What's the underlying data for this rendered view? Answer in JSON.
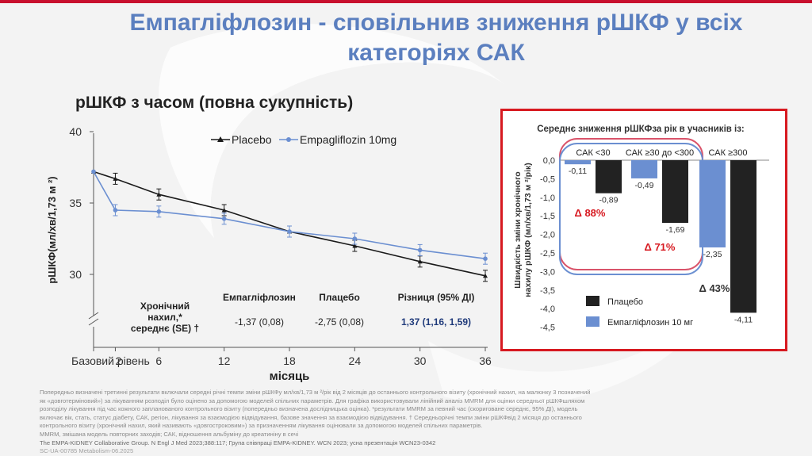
{
  "slide": {
    "title_line1": "Емпагліфлозин - сповільнив зниження рШКФ у всіх",
    "title_line2": "категоріях САК",
    "subtitle": "рШКФ з часом (повна сукупність)"
  },
  "colors": {
    "placebo": "#1a1a1a",
    "empa": "#6b8fd1",
    "title": "#5b7fbf",
    "frame": "#d71920"
  },
  "table": {
    "headers": [
      "Емпагліфлозин",
      "Плацебо",
      "Різниця (95% ДІ)"
    ],
    "row_label": [
      "Хронічний",
      "нахил,*",
      "середнє (SE) †"
    ],
    "values": [
      "-1,37 (0,08)",
      "-2,75 (0,08)",
      "1,37 (1,16, 1,59)"
    ]
  },
  "footnote": [
    "Попередньо визначені третинні результати включали середні річні темпи зміни рШКФу мл/хв/1,73 м ²/рік від 2 місяців до останнього контрольного візиту (хронічний нахил, на малюнку 3 позначений",
    "як «довготерміновий») за лікуванням розподіл було оцінено за допомогою моделей спільних параметрів. Для графіка використовували лінійний аналіз MMRM для оцінки середньої рШКФшляхом",
    "розподілу лікування під час кожного запланованого контрольного візиту (попередньо визначена дослідницька оцінка). *результати MMRM за певний час (скориговане середнє, 95% ДІ), модель",
    "включає вік, стать, статус діабету, САК, регіон, лікування за взаємодією відвідування, базове значення за взаємодією відвідування. † Середньорічні темпи зміни рШКФвід 2 місяця до останнього",
    "контрольного візиту (хронічний нахил, який називають «довгостроковим») за призначенням лікування оцінювали за допомогою моделей спільних параметрів.",
    "MMRM, змішана модель повторних заходів; САК, відношення альбуміну до креатиніну в сечі",
    "The EMPA-KIDNEY Collaborative Group. N Engl J Med 2023;388:117; Група співпраці EMPA-KIDNEY. WCN 2023; усна презентація WCN23-0342",
    "SC-UA-00785 Metabolism-06.2025"
  ],
  "chart_data": [
    {
      "type": "line",
      "title": "рШКФ з часом (повна сукупність)",
      "xlabel": "місяць",
      "ylabel": "рШКФ(мл/хв/1,73 м ²)",
      "x_ticks": [
        "Базовий рівень",
        "2",
        "6",
        "12",
        "18",
        "24",
        "30",
        "36"
      ],
      "x": [
        0,
        2,
        6,
        12,
        18,
        24,
        30,
        36
      ],
      "y_ticks": [
        "40",
        "35",
        "30"
      ],
      "ylim": [
        25,
        40
      ],
      "legend": "top",
      "series": [
        {
          "name": "Placebo",
          "values": [
            37.2,
            36.7,
            35.6,
            34.5,
            33.0,
            32.0,
            30.9,
            29.9
          ]
        },
        {
          "name": "Empagliflozin 10mg",
          "values": [
            37.2,
            34.5,
            34.4,
            33.9,
            33.0,
            32.5,
            31.7,
            31.1
          ]
        }
      ]
    },
    {
      "type": "bar",
      "title": "Середнє зниження рШКФза рік в учасників із:",
      "ylabel": "Швидкість зміни хронічного нахилу рШКФ (мл/хв/1,73 м ²/рік)",
      "categories": [
        "САК <30",
        "САК ≥30 до <300",
        "САК ≥300"
      ],
      "y_ticks": [
        "0,0",
        "-0,5",
        "-1,0",
        "-1,5",
        "-2,0",
        "-2,5",
        "-3,0",
        "-3,5",
        "-4,0",
        "-4,5"
      ],
      "ylim": [
        -4.5,
        0
      ],
      "legend": "bottom",
      "series": [
        {
          "name": "Плацебо",
          "values": [
            -0.89,
            -1.69,
            -4.11
          ],
          "labels": [
            "-0,89",
            "-1,69",
            "-4,11"
          ]
        },
        {
          "name": "Емпагліфлозин 10 мг",
          "values": [
            -0.11,
            -0.49,
            -2.35
          ],
          "labels": [
            "-0,11",
            "-0,49",
            "-2,35"
          ]
        }
      ],
      "annotations": [
        "Δ 88%",
        "Δ 71%",
        "Δ 43%"
      ]
    }
  ]
}
